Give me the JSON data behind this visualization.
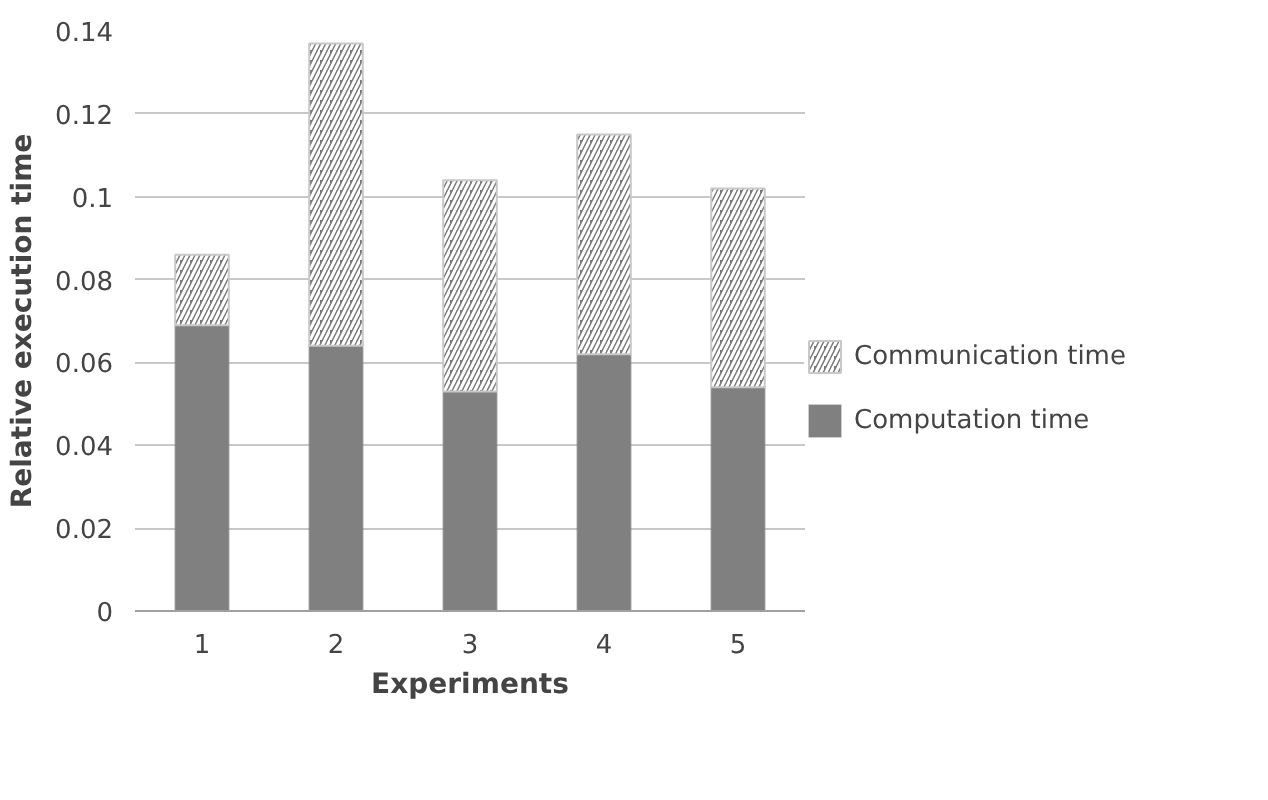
{
  "chart_data": {
    "type": "bar",
    "stacked": true,
    "xlabel": "Experiments",
    "ylabel": "Relative execution time",
    "categories": [
      "1",
      "2",
      "3",
      "4",
      "5"
    ],
    "series": [
      {
        "name": "Computation time",
        "color": "#808080",
        "values": [
          0.069,
          0.064,
          0.053,
          0.062,
          0.054
        ]
      },
      {
        "name": "Communication time",
        "color": "#7a7a7a",
        "values": [
          0.017,
          0.073,
          0.051,
          0.053,
          0.048
        ]
      }
    ],
    "ylim": [
      0,
      0.14
    ],
    "yticks": [
      0,
      0.02,
      0.04,
      0.06,
      0.08,
      0.1,
      0.12,
      0.14
    ],
    "grid": "y",
    "legend": "right"
  }
}
